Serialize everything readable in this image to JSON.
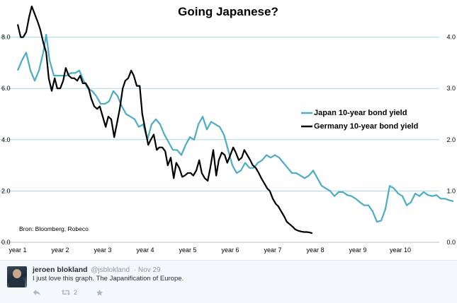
{
  "chart_data": {
    "type": "line",
    "title": "Going Japanese?",
    "source": "Bron: Bloomberg, Robeco",
    "x_tick_labels": [
      "year 1",
      "year 2",
      "year 3",
      "year 4",
      "year 5",
      "year 6",
      "year 7",
      "year 8",
      "year 9",
      "year 10"
    ],
    "xlim": [
      1,
      11
    ],
    "left_axis": {
      "ticks": [
        "0.0",
        "2.0",
        "4.0",
        "6.0",
        "8.0"
      ],
      "ylim": [
        0,
        9.2
      ]
    },
    "right_axis": {
      "ticks": [
        "0.0",
        "1.0",
        "2.0",
        "3.0",
        "4.0"
      ],
      "ylim": [
        0,
        4.6
      ]
    },
    "gridlines": "horizontal",
    "legend_position": "right-middle",
    "series": [
      {
        "name": "Japan 10-year bond yield",
        "axis": "right",
        "color": "#4bacc6",
        "x": [
          1.0,
          1.1,
          1.2,
          1.3,
          1.4,
          1.5,
          1.6,
          1.67,
          1.75,
          1.85,
          1.95,
          2.05,
          2.15,
          2.25,
          2.35,
          2.45,
          2.55,
          2.65,
          2.75,
          2.85,
          2.95,
          3.05,
          3.15,
          3.25,
          3.35,
          3.45,
          3.55,
          3.65,
          3.75,
          3.85,
          3.95,
          4.05,
          4.15,
          4.25,
          4.35,
          4.45,
          4.55,
          4.65,
          4.75,
          4.85,
          4.95,
          5.05,
          5.15,
          5.25,
          5.35,
          5.45,
          5.55,
          5.65,
          5.75,
          5.85,
          5.95,
          6.05,
          6.15,
          6.25,
          6.35,
          6.45,
          6.55,
          6.65,
          6.75,
          6.85,
          6.95,
          7.05,
          7.15,
          7.25,
          7.35,
          7.45,
          7.55,
          7.65,
          7.75,
          7.85,
          7.95,
          8.05,
          8.15,
          8.25,
          8.35,
          8.45,
          8.55,
          8.65,
          8.75,
          8.85,
          8.95,
          9.05,
          9.15,
          9.25,
          9.35,
          9.45,
          9.55,
          9.65,
          9.75,
          9.85,
          9.95,
          10.05,
          10.15,
          10.25,
          10.35,
          10.45,
          10.55,
          10.65,
          10.75,
          10.85,
          10.95,
          11.05,
          11.15,
          11.25
        ],
        "values": [
          3.35,
          3.55,
          3.7,
          3.35,
          3.15,
          3.35,
          3.7,
          4.05,
          3.55,
          3.25,
          3.25,
          3.25,
          3.25,
          3.3,
          3.3,
          3.35,
          3.15,
          3.0,
          2.95,
          2.85,
          2.7,
          2.7,
          2.75,
          2.95,
          2.85,
          2.65,
          2.5,
          2.45,
          2.4,
          2.25,
          2.3,
          2.0,
          2.3,
          2.4,
          2.3,
          2.1,
          1.95,
          1.8,
          1.8,
          1.7,
          1.9,
          2.05,
          2.0,
          2.3,
          2.45,
          2.2,
          2.35,
          2.3,
          2.25,
          2.1,
          1.8,
          1.5,
          1.35,
          1.4,
          1.55,
          1.45,
          1.45,
          1.55,
          1.6,
          1.7,
          1.65,
          1.7,
          1.65,
          1.55,
          1.45,
          1.35,
          1.35,
          1.3,
          1.25,
          1.3,
          1.4,
          1.25,
          1.1,
          1.05,
          1.0,
          0.9,
          0.98,
          0.98,
          0.92,
          0.9,
          0.85,
          0.78,
          0.72,
          0.72,
          0.6,
          0.4,
          0.42,
          0.65,
          1.1,
          1.05,
          0.95,
          0.9,
          0.72,
          0.78,
          0.95,
          0.9,
          0.98,
          0.92,
          0.9,
          0.92,
          0.85,
          0.85,
          0.82,
          0.8
        ]
      },
      {
        "name": "Germany 10-year bond yield",
        "axis": "left",
        "color": "#000000",
        "x": [
          1.0,
          1.07,
          1.13,
          1.2,
          1.27,
          1.33,
          1.4,
          1.47,
          1.53,
          1.6,
          1.67,
          1.73,
          1.8,
          1.87,
          1.93,
          2.0,
          2.07,
          2.13,
          2.2,
          2.27,
          2.33,
          2.4,
          2.47,
          2.53,
          2.6,
          2.67,
          2.73,
          2.8,
          2.87,
          2.93,
          3.0,
          3.07,
          3.13,
          3.2,
          3.27,
          3.33,
          3.4,
          3.47,
          3.53,
          3.6,
          3.67,
          3.73,
          3.8,
          3.87,
          3.93,
          4.0,
          4.07,
          4.13,
          4.2,
          4.27,
          4.33,
          4.4,
          4.47,
          4.53,
          4.6,
          4.67,
          4.73,
          4.8,
          4.87,
          4.93,
          5.0,
          5.07,
          5.13,
          5.2,
          5.27,
          5.33,
          5.4,
          5.47,
          5.53,
          5.6,
          5.67,
          5.73,
          5.8,
          5.87,
          5.93,
          6.0,
          6.07,
          6.13,
          6.2,
          6.27,
          6.33,
          6.4,
          6.47,
          6.53,
          6.6,
          6.67,
          6.73,
          6.8,
          6.87,
          6.93,
          7.0,
          7.07,
          7.13,
          7.2,
          7.27,
          7.33,
          7.4,
          7.47,
          7.53,
          7.6,
          7.67,
          7.73,
          7.8,
          7.87,
          7.93
        ],
        "values": [
          8.5,
          8.0,
          8.0,
          8.2,
          8.8,
          9.2,
          8.9,
          8.6,
          8.3,
          7.8,
          7.4,
          6.4,
          5.9,
          6.4,
          6.0,
          6.0,
          6.3,
          6.8,
          6.5,
          6.4,
          6.4,
          6.3,
          6.5,
          6.2,
          6.2,
          6.0,
          5.6,
          5.3,
          5.2,
          5.3,
          4.9,
          4.5,
          4.9,
          4.8,
          4.1,
          4.6,
          5.2,
          6.0,
          6.3,
          6.4,
          6.7,
          6.5,
          6.1,
          6.1,
          5.0,
          4.4,
          3.8,
          4.0,
          4.2,
          3.6,
          3.7,
          3.7,
          3.55,
          3.0,
          3.3,
          2.5,
          3.1,
          2.9,
          2.55,
          2.6,
          2.7,
          2.7,
          2.6,
          2.8,
          3.2,
          2.7,
          2.5,
          2.4,
          2.9,
          3.6,
          2.6,
          3.2,
          3.5,
          3.4,
          3.1,
          3.4,
          3.7,
          3.5,
          3.2,
          3.3,
          3.6,
          3.4,
          3.2,
          3.0,
          2.9,
          2.7,
          2.5,
          2.3,
          2.1,
          2.0,
          1.7,
          1.5,
          1.4,
          1.2,
          1.0,
          0.8,
          0.7,
          0.6,
          0.5,
          0.45,
          0.42,
          0.4,
          0.4,
          0.38,
          0.35
        ]
      }
    ]
  },
  "tweet": {
    "author": "jeroen blokland",
    "handle": "@jsblokland",
    "date": "· Nov 29",
    "text": "I just love this graph. The Japanification of Europe.",
    "retweet_count": "2"
  }
}
